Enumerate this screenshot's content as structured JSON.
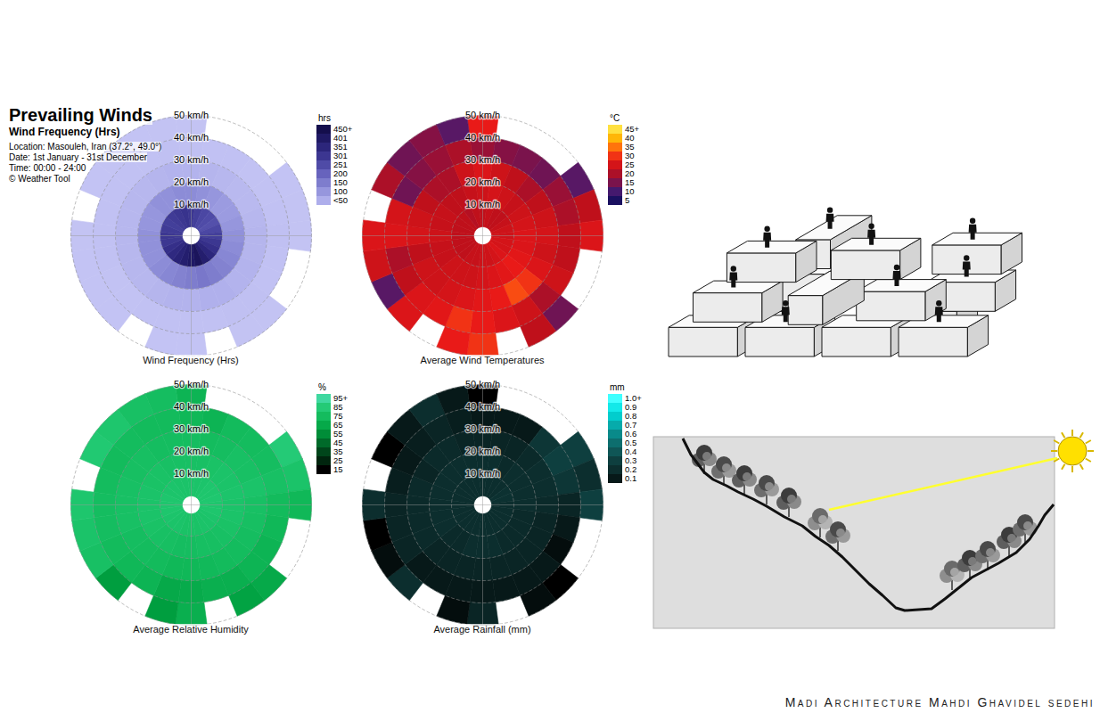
{
  "header": {
    "title": "Prevailing Winds",
    "subtitle": "Wind Frequency (Hrs)",
    "lines": [
      "Location: Masouleh, Iran (37.2°, 49.0°)",
      "Date: 1st January - 31st December",
      "Time: 00:00 - 24:00",
      "© Weather Tool"
    ]
  },
  "chart_data": [
    {
      "type": "wind_rose",
      "title": "Wind Frequency (Hrs)",
      "directions": [
        0,
        15,
        30,
        45,
        60,
        75,
        90,
        105,
        120,
        135,
        150,
        165,
        180,
        195,
        210,
        225,
        240,
        255,
        270,
        285,
        300,
        315,
        330,
        345
      ],
      "speed_bins": [
        0,
        10,
        20,
        30,
        40,
        50
      ],
      "r_ticks": [
        {
          "value": 50,
          "label": "50 km/h"
        },
        {
          "value": 40,
          "label": "40 km/h"
        },
        {
          "value": 30,
          "label": "30 km/h"
        },
        {
          "value": 20,
          "label": "20 km/h"
        },
        {
          "value": 10,
          "label": "10 km/h"
        }
      ],
      "cells": [
        [
          300,
          120,
          40,
          10,
          3
        ],
        [
          280,
          110,
          35,
          8,
          null
        ],
        [
          260,
          100,
          30,
          6,
          null
        ],
        [
          250,
          90,
          25,
          5,
          null
        ],
        [
          240,
          90,
          25,
          5,
          2
        ],
        [
          260,
          100,
          30,
          8,
          3
        ],
        [
          280,
          110,
          35,
          10,
          3
        ],
        [
          300,
          120,
          35,
          8,
          null
        ],
        [
          320,
          130,
          40,
          8,
          null
        ],
        [
          350,
          140,
          40,
          10,
          3
        ],
        [
          380,
          150,
          45,
          10,
          3
        ],
        [
          420,
          160,
          45,
          8,
          null
        ],
        [
          400,
          150,
          40,
          8,
          2
        ],
        [
          380,
          140,
          40,
          6,
          2
        ],
        [
          360,
          130,
          35,
          6,
          null
        ],
        [
          340,
          120,
          30,
          5,
          2
        ],
        [
          320,
          110,
          30,
          5,
          2
        ],
        [
          300,
          110,
          30,
          6,
          2
        ],
        [
          300,
          110,
          30,
          8,
          3
        ],
        [
          290,
          100,
          30,
          6,
          null
        ],
        [
          280,
          100,
          30,
          6,
          2
        ],
        [
          290,
          110,
          30,
          8,
          3
        ],
        [
          300,
          110,
          35,
          8,
          2
        ],
        [
          310,
          120,
          40,
          10,
          3
        ]
      ],
      "colorbar": {
        "label": "hrs",
        "lim": [
          0,
          450
        ],
        "ticks": [
          {
            "value": 450,
            "label": "450+"
          },
          401,
          351,
          301,
          251,
          200,
          150,
          100,
          {
            "value": 50,
            "label": "<50"
          }
        ],
        "colors": [
          "#c4c4f4",
          "#a8a8e8",
          "#8888d4",
          "#6a66c0",
          "#4c48a4",
          "#342e88",
          "#221c6c",
          "#140e4c"
        ]
      }
    },
    {
      "type": "wind_rose",
      "title": "Average Wind Temperatures",
      "directions": [
        0,
        15,
        30,
        45,
        60,
        75,
        90,
        105,
        120,
        135,
        150,
        165,
        180,
        195,
        210,
        225,
        240,
        255,
        270,
        285,
        300,
        315,
        330,
        345
      ],
      "speed_bins": [
        0,
        10,
        20,
        30,
        40,
        50
      ],
      "r_ticks": [
        {
          "value": 50,
          "label": "50 km/h"
        },
        {
          "value": 40,
          "label": "40 km/h"
        },
        {
          "value": 30,
          "label": "30 km/h"
        },
        {
          "value": 20,
          "label": "20 km/h"
        },
        {
          "value": 10,
          "label": "10 km/h"
        }
      ],
      "cells": [
        [
          22,
          24,
          26,
          18,
          28
        ],
        [
          23,
          25,
          24,
          16,
          null
        ],
        [
          22,
          24,
          22,
          15,
          null
        ],
        [
          22,
          23,
          20,
          14,
          null
        ],
        [
          23,
          24,
          22,
          18,
          12
        ],
        [
          24,
          25,
          24,
          20,
          22
        ],
        [
          24,
          26,
          25,
          22,
          26
        ],
        [
          25,
          26,
          24,
          22,
          null
        ],
        [
          25,
          27,
          26,
          24,
          null
        ],
        [
          26,
          28,
          30,
          20,
          14
        ],
        [
          25,
          27,
          32,
          24,
          22
        ],
        [
          24,
          26,
          28,
          26,
          null
        ],
        [
          24,
          25,
          27,
          28,
          30
        ],
        [
          23,
          24,
          26,
          30,
          28
        ],
        [
          23,
          24,
          25,
          27,
          null
        ],
        [
          22,
          24,
          24,
          26,
          26
        ],
        [
          22,
          23,
          24,
          22,
          12
        ],
        [
          22,
          23,
          22,
          20,
          24
        ],
        [
          22,
          24,
          25,
          26,
          26
        ],
        [
          22,
          23,
          24,
          25,
          null
        ],
        [
          22,
          23,
          22,
          14,
          20
        ],
        [
          22,
          22,
          20,
          16,
          14
        ],
        [
          21,
          22,
          20,
          18,
          16
        ],
        [
          22,
          23,
          24,
          20,
          12
        ]
      ],
      "colorbar": {
        "label": "°C",
        "lim": [
          5,
          45
        ],
        "ticks": [
          {
            "value": 45,
            "label": "45+"
          },
          40,
          35,
          30,
          25,
          20,
          15,
          10,
          5
        ],
        "colors": [
          "#1a1060",
          "#4a1a70",
          "#8a1040",
          "#c0101a",
          "#e81818",
          "#ff6010",
          "#ffb000",
          "#ffe040"
        ]
      }
    },
    {
      "type": "wind_rose",
      "title": "Average Relative Humidity",
      "directions": [
        0,
        15,
        30,
        45,
        60,
        75,
        90,
        105,
        120,
        135,
        150,
        165,
        180,
        195,
        210,
        225,
        240,
        255,
        270,
        285,
        300,
        315,
        330,
        345
      ],
      "speed_bins": [
        0,
        10,
        20,
        30,
        40,
        50
      ],
      "r_ticks": [
        {
          "value": 50,
          "label": "50 km/h"
        },
        {
          "value": 40,
          "label": "40 km/h"
        },
        {
          "value": 30,
          "label": "30 km/h"
        },
        {
          "value": 20,
          "label": "20 km/h"
        },
        {
          "value": 10,
          "label": "10 km/h"
        }
      ],
      "cells": [
        [
          80,
          78,
          76,
          72,
          70
        ],
        [
          80,
          78,
          75,
          70,
          null
        ],
        [
          81,
          79,
          76,
          74,
          null
        ],
        [
          82,
          80,
          78,
          75,
          null
        ],
        [
          82,
          80,
          78,
          76,
          85
        ],
        [
          83,
          81,
          80,
          78,
          80
        ],
        [
          82,
          80,
          78,
          74,
          72
        ],
        [
          82,
          80,
          77,
          72,
          null
        ],
        [
          81,
          79,
          76,
          70,
          null
        ],
        [
          80,
          78,
          75,
          70,
          65
        ],
        [
          80,
          77,
          74,
          68,
          62
        ],
        [
          79,
          77,
          73,
          68,
          null
        ],
        [
          79,
          76,
          72,
          66,
          68
        ],
        [
          79,
          76,
          72,
          65,
          60
        ],
        [
          80,
          77,
          74,
          70,
          null
        ],
        [
          80,
          78,
          75,
          72,
          60
        ],
        [
          81,
          79,
          76,
          74,
          78
        ],
        [
          82,
          80,
          78,
          76,
          80
        ],
        [
          82,
          80,
          78,
          76,
          82
        ],
        [
          82,
          80,
          78,
          75,
          null
        ],
        [
          81,
          79,
          77,
          74,
          84
        ],
        [
          81,
          79,
          77,
          75,
          82
        ],
        [
          80,
          78,
          76,
          74,
          78
        ],
        [
          80,
          78,
          76,
          74,
          76
        ]
      ],
      "colorbar": {
        "label": "%",
        "lim": [
          15,
          95
        ],
        "ticks": [
          {
            "value": 95,
            "label": "95+"
          },
          85,
          75,
          65,
          55,
          45,
          35,
          25,
          15
        ],
        "colors": [
          "#000000",
          "#002a10",
          "#00501f",
          "#007a30",
          "#00a040",
          "#10b858",
          "#20c870",
          "#40d8a0"
        ]
      }
    },
    {
      "type": "wind_rose",
      "title": "Average Rainfall (mm)",
      "directions": [
        0,
        15,
        30,
        45,
        60,
        75,
        90,
        105,
        120,
        135,
        150,
        165,
        180,
        195,
        210,
        225,
        240,
        255,
        270,
        285,
        300,
        315,
        330,
        345
      ],
      "speed_bins": [
        0,
        10,
        20,
        30,
        40,
        50
      ],
      "r_ticks": [
        {
          "value": 50,
          "label": "50 km/h"
        },
        {
          "value": 40,
          "label": "40 km/h"
        },
        {
          "value": 30,
          "label": "30 km/h"
        },
        {
          "value": 20,
          "label": "20 km/h"
        },
        {
          "value": 10,
          "label": "10 km/h"
        }
      ],
      "cells": [
        [
          0.2,
          0.2,
          0.15,
          0.1,
          0
        ],
        [
          0.2,
          0.2,
          0.15,
          0.1,
          null
        ],
        [
          0.2,
          0.18,
          0.15,
          0.1,
          null
        ],
        [
          0.2,
          0.2,
          0.18,
          0.25,
          null
        ],
        [
          0.22,
          0.2,
          0.2,
          0.3,
          0.3
        ],
        [
          0.22,
          0.2,
          0.2,
          0.25,
          0.2
        ],
        [
          0.2,
          0.2,
          0.18,
          0.15,
          0.3
        ],
        [
          0.2,
          0.18,
          0.15,
          0.1,
          null
        ],
        [
          0.2,
          0.18,
          0.15,
          0.05,
          null
        ],
        [
          0.2,
          0.18,
          0.15,
          0.1,
          0
        ],
        [
          0.2,
          0.18,
          0.15,
          0.1,
          0.05
        ],
        [
          0.2,
          0.2,
          0.15,
          0.1,
          null
        ],
        [
          0.2,
          0.2,
          0.15,
          0.1,
          0.15
        ],
        [
          0.2,
          0.2,
          0.15,
          0.1,
          0.05
        ],
        [
          0.2,
          0.18,
          0.15,
          0.1,
          null
        ],
        [
          0.2,
          0.18,
          0.15,
          0.1,
          0.2
        ],
        [
          0.2,
          0.2,
          0.18,
          0.15,
          0.05
        ],
        [
          0.2,
          0.2,
          0.18,
          0.15,
          0
        ],
        [
          0.2,
          0.2,
          0.18,
          0.15,
          0.2
        ],
        [
          0.2,
          0.2,
          0.18,
          0.12,
          null
        ],
        [
          0.2,
          0.2,
          0.15,
          0.1,
          0
        ],
        [
          0.2,
          0.2,
          0.18,
          0.12,
          0.1
        ],
        [
          0.2,
          0.2,
          0.18,
          0.15,
          0.2
        ],
        [
          0.2,
          0.2,
          0.15,
          0.12,
          0.1
        ]
      ],
      "colorbar": {
        "label": "mm",
        "lim": [
          0,
          1.0
        ],
        "ticks": [
          {
            "value": 1.0,
            "label": "1.0+"
          },
          0.9,
          0.8,
          0.7,
          0.6,
          0.5,
          0.4,
          0.3,
          0.2,
          0.1
        ],
        "colors": [
          "#000000",
          "#0a2424",
          "#0e3c3c",
          "#0f5c5c",
          "#0a8080",
          "#05b0b0",
          "#00e0e0",
          "#40ffff"
        ]
      }
    }
  ],
  "footer": "Madi Architecture Mahdi Ghavidel sedehi"
}
